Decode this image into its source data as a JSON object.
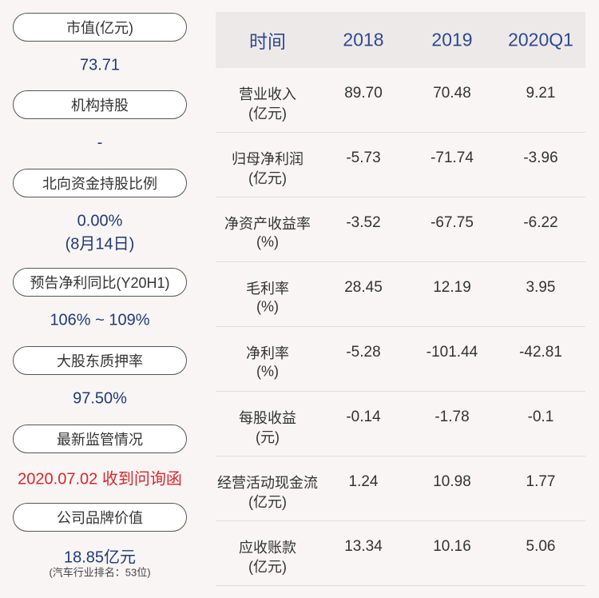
{
  "sidebar": [
    {
      "label": "市值(亿元)",
      "lines": [
        "73.71"
      ]
    },
    {
      "label": "机构持股",
      "lines": [
        "-"
      ]
    },
    {
      "label": "北向资金持股比例",
      "lines": [
        "0.00%",
        "(8月14日)"
      ]
    },
    {
      "label": "预告净利同比(Y20H1)",
      "lines": [
        "106% ~ 109%"
      ]
    },
    {
      "label": "大股东质押率",
      "lines": [
        "97.50%"
      ]
    },
    {
      "label": "最新监管情况",
      "lines": [
        "2020.07.02 收到问询函"
      ]
    },
    {
      "label": "公司品牌价值",
      "lines": [
        "18.85亿元",
        "(汽车行业排名：53位)"
      ]
    }
  ],
  "table": {
    "header": [
      "时间",
      "2018",
      "2019",
      "2020Q1"
    ],
    "rows": [
      [
        [
          "营业收入",
          "(亿元)"
        ],
        "89.70",
        "70.48",
        "9.21"
      ],
      [
        [
          "归母净利润",
          "(亿元)"
        ],
        "-5.73",
        "-71.74",
        "-3.96"
      ],
      [
        [
          "净资产收益率",
          "(%)"
        ],
        "-3.52",
        "-67.75",
        "-6.22"
      ],
      [
        [
          "毛利率",
          "(%)"
        ],
        "28.45",
        "12.19",
        "3.95"
      ],
      [
        [
          "净利率",
          "(%)"
        ],
        "-5.28",
        "-101.44",
        "-42.81"
      ],
      [
        [
          "每股收益",
          "(元)"
        ],
        "-0.14",
        "-1.78",
        "-0.1"
      ],
      [
        [
          "经营活动现金流",
          "(亿元)"
        ],
        "1.24",
        "10.98",
        "1.77"
      ],
      [
        [
          "应收账款",
          "(亿元)"
        ],
        "13.34",
        "10.16",
        "5.06"
      ]
    ]
  }
}
